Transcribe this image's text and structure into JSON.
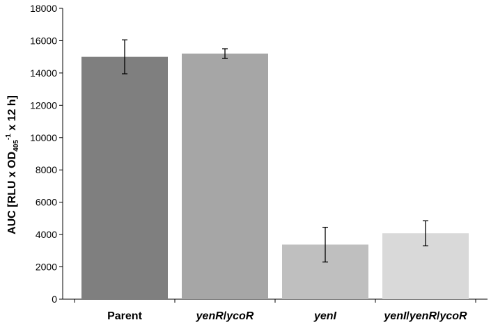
{
  "chart_data": {
    "type": "bar",
    "categories": [
      "Parent",
      "yenR/ycoR",
      "yenI",
      "yenI/yenR/ycoR"
    ],
    "category_parts": [
      [
        {
          "text": "Parent",
          "italic": false
        }
      ],
      [
        {
          "text": "yenR",
          "italic": true
        },
        {
          "text": "/",
          "italic": false
        },
        {
          "text": "ycoR",
          "italic": true
        }
      ],
      [
        {
          "text": "yenI",
          "italic": true
        }
      ],
      [
        {
          "text": "yenI",
          "italic": true
        },
        {
          "text": "/",
          "italic": false
        },
        {
          "text": "yenR",
          "italic": true
        },
        {
          "text": "/",
          "italic": false
        },
        {
          "text": "ycoR",
          "italic": true
        }
      ]
    ],
    "values": [
      15000,
      15200,
      3380,
      4080
    ],
    "error_bars": [
      [
        13950,
        16050
      ],
      [
        14900,
        15500
      ],
      [
        2300,
        4450
      ],
      [
        3300,
        4850
      ]
    ],
    "colors": [
      "#7f7f7f",
      "#a6a6a6",
      "#bfbfbf",
      "#d9d9d9"
    ],
    "ylim": [
      0,
      18000
    ],
    "yticks": [
      0,
      2000,
      4000,
      6000,
      8000,
      10000,
      12000,
      14000,
      16000,
      18000
    ],
    "ylabel_parts": {
      "pre": "AUC [RLU x OD",
      "sub": "405",
      "sup": "-1",
      "post": " x 12 h]"
    },
    "xlabel": "",
    "title": "",
    "grid": false,
    "legend": false
  }
}
